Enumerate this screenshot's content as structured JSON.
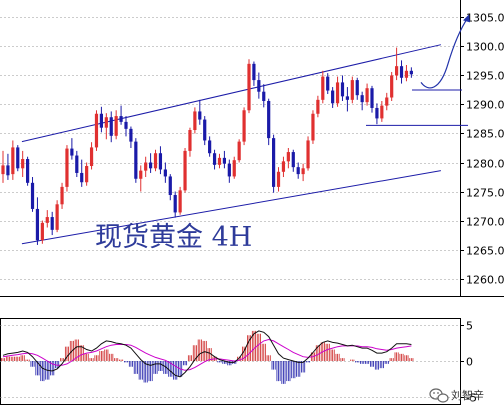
{
  "chart_data": [
    {
      "type": "candlestick",
      "title": "现货黄金 4H",
      "instrument": "现货黄金",
      "timeframe": "4H",
      "ylim": [
        1257,
        1308
      ],
      "yticks": [
        1260,
        1265,
        1270,
        1275,
        1280,
        1285,
        1290,
        1295,
        1300,
        1305
      ],
      "ytick_labels": [
        "1260.0",
        "1265.0",
        "1270.0",
        "1275.0",
        "1280.0",
        "1285.0",
        "1290.0",
        "1295.0",
        "1300.0",
        "1305.0"
      ],
      "grid": "horizontal-dashed",
      "colors": {
        "up": "#e03030",
        "down": "#1a1aa8",
        "channel": "#1c1ca8",
        "grid": "#9a9a9a",
        "forecast": "#2233aa"
      },
      "channel": {
        "upper": [
          [
            1,
            1283.6
          ],
          [
            89,
            1300.3
          ]
        ],
        "lower": [
          [
            1,
            1266.0
          ],
          [
            89,
            1278.6
          ]
        ]
      },
      "levels": [
        1292.5,
        1286.4
      ],
      "forecast": [
        [
          1293.8
        ],
        [
          1292.5
        ],
        [
          1297
        ],
        [
          1305
        ]
      ],
      "candles": [
        [
          0,
          1278.0,
          1282.0,
          1276.5,
          1279.5
        ],
        [
          1,
          1279.5,
          1281.5,
          1277.0,
          1277.8
        ],
        [
          2,
          1278.0,
          1283.8,
          1277.0,
          1282.6
        ],
        [
          3,
          1282.6,
          1283.0,
          1278.5,
          1279.0
        ],
        [
          4,
          1279.0,
          1282.0,
          1277.5,
          1280.6
        ],
        [
          5,
          1280.6,
          1281.0,
          1276.0,
          1276.5
        ],
        [
          6,
          1276.5,
          1277.5,
          1271.5,
          1272.0
        ],
        [
          7,
          1272.0,
          1274.0,
          1265.8,
          1266.6
        ],
        [
          8,
          1266.6,
          1270.0,
          1266.0,
          1269.6
        ],
        [
          9,
          1269.6,
          1271.8,
          1268.8,
          1270.6
        ],
        [
          10,
          1270.6,
          1271.5,
          1267.5,
          1268.4
        ],
        [
          11,
          1268.4,
          1273.5,
          1268.0,
          1272.8
        ],
        [
          12,
          1272.8,
          1276.5,
          1272.0,
          1275.8
        ],
        [
          13,
          1275.8,
          1283.0,
          1275.0,
          1282.4
        ],
        [
          14,
          1282.4,
          1284.2,
          1280.5,
          1281.2
        ],
        [
          15,
          1281.2,
          1282.0,
          1277.5,
          1278.2
        ],
        [
          16,
          1278.2,
          1280.5,
          1275.8,
          1276.6
        ],
        [
          17,
          1276.6,
          1280.0,
          1276.0,
          1279.4
        ],
        [
          18,
          1279.4,
          1283.5,
          1278.8,
          1282.6
        ],
        [
          19,
          1282.6,
          1289.0,
          1282.0,
          1288.4
        ],
        [
          20,
          1288.4,
          1289.6,
          1285.2,
          1286.0
        ],
        [
          21,
          1286.0,
          1288.5,
          1284.0,
          1287.8
        ],
        [
          22,
          1287.8,
          1288.8,
          1283.5,
          1284.6
        ],
        [
          23,
          1284.6,
          1289.0,
          1284.0,
          1288.0
        ],
        [
          24,
          1288.0,
          1289.8,
          1286.5,
          1287.0
        ],
        [
          25,
          1287.0,
          1288.0,
          1284.5,
          1285.8
        ],
        [
          26,
          1285.8,
          1286.2,
          1282.5,
          1283.6
        ],
        [
          27,
          1283.6,
          1284.2,
          1276.5,
          1277.2
        ],
        [
          28,
          1277.2,
          1279.5,
          1275.0,
          1278.6
        ],
        [
          29,
          1278.6,
          1281.0,
          1277.5,
          1280.0
        ],
        [
          30,
          1280.0,
          1281.6,
          1278.2,
          1279.0
        ],
        [
          31,
          1279.0,
          1282.2,
          1278.5,
          1281.6
        ],
        [
          32,
          1281.6,
          1282.8,
          1278.0,
          1278.8
        ],
        [
          33,
          1278.8,
          1280.0,
          1276.5,
          1277.6
        ],
        [
          34,
          1277.6,
          1278.0,
          1273.5,
          1274.4
        ],
        [
          35,
          1274.4,
          1275.0,
          1270.5,
          1271.4
        ],
        [
          36,
          1271.4,
          1275.8,
          1271.0,
          1275.2
        ],
        [
          37,
          1275.2,
          1282.5,
          1274.8,
          1282.0
        ],
        [
          38,
          1282.0,
          1286.0,
          1281.0,
          1285.6
        ],
        [
          39,
          1285.6,
          1289.5,
          1285.0,
          1288.8
        ],
        [
          40,
          1288.8,
          1290.8,
          1286.5,
          1287.4
        ],
        [
          41,
          1287.4,
          1288.0,
          1283.0,
          1283.8
        ],
        [
          42,
          1283.8,
          1284.5,
          1281.0,
          1281.6
        ],
        [
          43,
          1281.6,
          1282.2,
          1278.8,
          1279.6
        ],
        [
          44,
          1279.6,
          1281.5,
          1279.0,
          1280.8
        ],
        [
          45,
          1280.8,
          1282.0,
          1279.0,
          1279.8
        ],
        [
          46,
          1279.8,
          1280.5,
          1276.5,
          1277.6
        ],
        [
          47,
          1277.6,
          1281.0,
          1277.2,
          1280.4
        ],
        [
          48,
          1280.4,
          1284.0,
          1280.0,
          1283.6
        ],
        [
          49,
          1283.6,
          1289.5,
          1283.0,
          1289.0
        ],
        [
          50,
          1289.0,
          1297.8,
          1288.5,
          1297.0
        ],
        [
          51,
          1297.0,
          1297.4,
          1293.2,
          1294.2
        ],
        [
          52,
          1294.2,
          1295.5,
          1291.0,
          1292.2
        ],
        [
          53,
          1292.2,
          1293.5,
          1289.5,
          1290.6
        ],
        [
          54,
          1290.6,
          1291.0,
          1283.0,
          1284.2
        ],
        [
          55,
          1284.2,
          1284.8,
          1274.8,
          1275.8
        ],
        [
          56,
          1275.8,
          1279.2,
          1275.0,
          1278.4
        ],
        [
          57,
          1278.4,
          1281.0,
          1277.5,
          1280.2
        ],
        [
          58,
          1280.2,
          1282.5,
          1279.0,
          1281.8
        ],
        [
          59,
          1281.8,
          1282.2,
          1278.4,
          1279.2
        ],
        [
          60,
          1279.2,
          1280.0,
          1277.2,
          1278.0
        ],
        [
          61,
          1278.0,
          1279.8,
          1276.8,
          1279.0
        ],
        [
          62,
          1279.0,
          1284.5,
          1278.6,
          1283.8
        ],
        [
          63,
          1283.8,
          1289.0,
          1283.2,
          1288.4
        ],
        [
          64,
          1288.4,
          1291.5,
          1287.8,
          1290.8
        ],
        [
          65,
          1290.8,
          1295.8,
          1290.2,
          1294.8
        ],
        [
          66,
          1294.8,
          1295.4,
          1291.8,
          1292.4
        ],
        [
          67,
          1292.4,
          1293.0,
          1289.4,
          1290.2
        ],
        [
          68,
          1290.2,
          1294.8,
          1289.6,
          1293.8
        ],
        [
          69,
          1293.8,
          1295.0,
          1290.6,
          1291.4
        ],
        [
          70,
          1291.4,
          1293.0,
          1288.8,
          1290.8
        ],
        [
          71,
          1290.8,
          1294.8,
          1290.2,
          1294.2
        ],
        [
          72,
          1294.2,
          1294.6,
          1290.8,
          1291.6
        ],
        [
          73,
          1291.6,
          1292.2,
          1289.0,
          1290.4
        ],
        [
          74,
          1290.4,
          1293.6,
          1289.8,
          1292.8
        ],
        [
          75,
          1292.8,
          1293.2,
          1288.6,
          1289.4
        ],
        [
          76,
          1289.4,
          1290.2,
          1286.6,
          1287.6
        ],
        [
          77,
          1287.6,
          1290.6,
          1287.0,
          1289.8
        ],
        [
          78,
          1289.8,
          1292.0,
          1289.0,
          1291.2
        ],
        [
          79,
          1291.2,
          1295.6,
          1290.6,
          1295.0
        ],
        [
          80,
          1295.0,
          1299.8,
          1294.2,
          1296.6
        ],
        [
          81,
          1296.6,
          1297.6,
          1293.6,
          1294.6
        ],
        [
          82,
          1294.6,
          1296.8,
          1294.0,
          1295.8
        ],
        [
          83,
          1295.8,
          1296.4,
          1294.6,
          1295.2
        ]
      ]
    },
    {
      "type": "macd",
      "ylim": [
        -6,
        6
      ],
      "yticks": [
        5,
        0,
        -5
      ],
      "ytick_labels": [
        "5",
        "0",
        "-5"
      ],
      "series_colors": {
        "macd": "#111111",
        "signal": "#cc00cc",
        "hist_pos": "#cc2222",
        "hist_neg": "#1a1aa8"
      },
      "dif": [
        0.8,
        1.0,
        1.1,
        1.2,
        1.4,
        1.2,
        0.6,
        -0.2,
        -1.0,
        -1.3,
        -1.4,
        -1.1,
        -0.4,
        0.6,
        1.4,
        2.0,
        2.0,
        1.6,
        1.4,
        1.8,
        2.4,
        2.8,
        2.7,
        2.5,
        2.4,
        2.2,
        1.8,
        1.0,
        0.2,
        -0.4,
        -0.6,
        -0.4,
        -0.4,
        -0.8,
        -1.4,
        -2.0,
        -2.2,
        -1.6,
        -0.8,
        0.2,
        1.0,
        1.3,
        1.1,
        0.6,
        0.2,
        0.0,
        -0.2,
        -0.2,
        0.4,
        1.4,
        2.8,
        3.8,
        4.2,
        4.0,
        3.4,
        2.2,
        1.0,
        0.4,
        0.2,
        0.0,
        -0.2,
        -0.2,
        0.4,
        1.2,
        2.0,
        2.6,
        2.8,
        2.6,
        2.5,
        2.3,
        2.1,
        2.2,
        2.0,
        1.8,
        1.8,
        1.5,
        1.1,
        1.1,
        1.3,
        1.8,
        2.4,
        2.4,
        2.4,
        2.3
      ],
      "dea": [
        0.6,
        0.7,
        0.8,
        0.9,
        1.0,
        1.1,
        1.0,
        0.8,
        0.4,
        0.0,
        -0.4,
        -0.6,
        -0.6,
        -0.4,
        0.0,
        0.5,
        0.9,
        1.1,
        1.2,
        1.4,
        1.7,
        2.0,
        2.2,
        2.3,
        2.3,
        2.3,
        2.2,
        1.9,
        1.5,
        1.1,
        0.8,
        0.5,
        0.3,
        0.1,
        -0.3,
        -0.7,
        -1.1,
        -1.3,
        -1.2,
        -0.9,
        -0.5,
        -0.1,
        0.2,
        0.3,
        0.3,
        0.2,
        0.1,
        0.0,
        0.1,
        0.4,
        1.0,
        1.7,
        2.3,
        2.8,
        3.0,
        2.8,
        2.4,
        2.0,
        1.6,
        1.2,
        0.9,
        0.6,
        0.5,
        0.6,
        0.9,
        1.3,
        1.6,
        1.8,
        2.0,
        2.1,
        2.1,
        2.1,
        2.1,
        2.0,
        2.0,
        1.9,
        1.7,
        1.6,
        1.5,
        1.6,
        1.8,
        1.9,
        2.0,
        2.1
      ],
      "histogram": [
        0.4,
        0.6,
        0.6,
        0.6,
        0.8,
        0.2,
        -0.8,
        -2.0,
        -2.8,
        -2.6,
        -2.0,
        -1.0,
        0.4,
        2.0,
        2.8,
        3.0,
        2.2,
        1.0,
        0.4,
        0.8,
        1.4,
        1.6,
        1.0,
        0.4,
        0.2,
        -0.2,
        -0.8,
        -1.8,
        -2.6,
        -3.0,
        -2.8,
        -1.8,
        -1.4,
        -1.8,
        -2.2,
        -2.6,
        -2.2,
        -0.6,
        0.8,
        2.2,
        3.0,
        2.8,
        1.8,
        0.6,
        -0.2,
        -0.4,
        -0.6,
        -0.4,
        0.6,
        2.0,
        3.6,
        4.2,
        3.8,
        2.4,
        0.8,
        -1.2,
        -2.8,
        -3.2,
        -2.8,
        -2.4,
        -2.2,
        -1.6,
        -0.2,
        1.2,
        2.2,
        2.6,
        2.4,
        1.6,
        1.0,
        0.4,
        0.0,
        0.2,
        -0.2,
        -0.4,
        -0.4,
        -0.8,
        -1.2,
        -1.0,
        -0.4,
        0.4,
        1.2,
        1.0,
        0.8,
        0.4
      ]
    }
  ],
  "watermark": {
    "icon": "wechat-icon",
    "label": "刘智辛"
  }
}
